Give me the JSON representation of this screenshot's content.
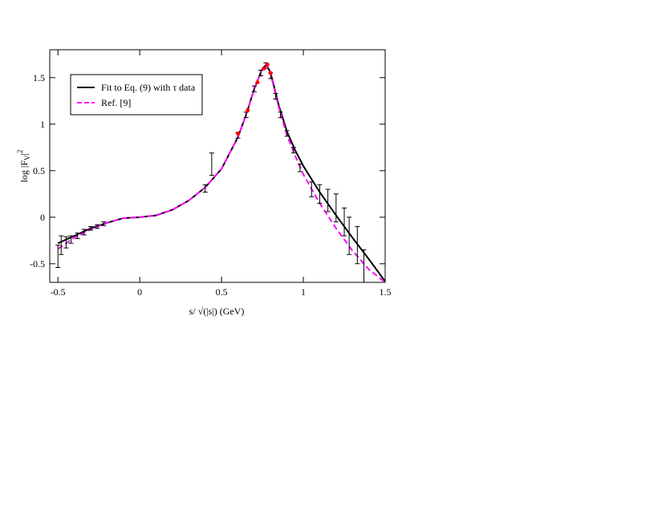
{
  "chart_data": {
    "type": "line",
    "xlabel": "s/ √(|s|)    (GeV)",
    "ylabel": {
      "text": "log |F",
      "sub": "V",
      "after": "|",
      "sup": "2"
    },
    "xlim": [
      -0.55,
      1.5
    ],
    "ylim": [
      -0.7,
      1.8
    ],
    "xticks": [
      -0.5,
      0,
      0.5,
      1,
      1.5
    ],
    "yticks": [
      -0.5,
      0,
      0.5,
      1,
      1.5
    ],
    "legend": "upper left",
    "series": [
      {
        "name": "Fit to Eq. (9) with τ data",
        "color": "#000000",
        "style": "solid",
        "x": [
          -0.5,
          -0.4,
          -0.3,
          -0.2,
          -0.1,
          0,
          0.1,
          0.2,
          0.3,
          0.4,
          0.5,
          0.6,
          0.65,
          0.7,
          0.75,
          0.775,
          0.8,
          0.85,
          0.9,
          0.95,
          1.0,
          1.1,
          1.2,
          1.3,
          1.4,
          1.5
        ],
        "values": [
          -0.28,
          -0.2,
          -0.12,
          -0.06,
          -0.01,
          0,
          0.02,
          0.08,
          0.18,
          0.32,
          0.52,
          0.86,
          1.1,
          1.38,
          1.6,
          1.64,
          1.55,
          1.2,
          0.92,
          0.72,
          0.55,
          0.27,
          0.02,
          -0.22,
          -0.45,
          -0.69
        ]
      },
      {
        "name": "Ref. [9]",
        "color": "#ff00ff",
        "style": "dashed",
        "x": [
          -0.5,
          -0.4,
          -0.3,
          -0.2,
          -0.1,
          0,
          0.1,
          0.2,
          0.3,
          0.4,
          0.5,
          0.6,
          0.65,
          0.7,
          0.75,
          0.775,
          0.8,
          0.85,
          0.9,
          0.95,
          1.0,
          1.1,
          1.2,
          1.3,
          1.4,
          1.5
        ],
        "values": [
          -0.34,
          -0.22,
          -0.13,
          -0.06,
          -0.01,
          0,
          0.02,
          0.08,
          0.18,
          0.32,
          0.52,
          0.86,
          1.1,
          1.38,
          1.6,
          1.64,
          1.54,
          1.18,
          0.88,
          0.66,
          0.46,
          0.15,
          -0.12,
          -0.36,
          -0.56,
          -0.7
        ]
      },
      {
        "color": "#000000",
        "style": "errorbar",
        "x": [
          -0.5,
          -0.48,
          -0.45,
          -0.42,
          -0.38,
          -0.34,
          -0.3,
          -0.26,
          -0.22,
          0.4,
          0.44,
          0.6,
          0.65,
          0.7,
          0.74,
          0.77,
          0.8,
          0.83,
          0.86,
          0.9,
          0.94,
          0.98,
          1.05,
          1.1,
          1.15,
          1.2,
          1.25,
          1.28,
          1.33,
          1.37
        ],
        "values": [
          -0.42,
          -0.3,
          -0.27,
          -0.24,
          -0.2,
          -0.16,
          -0.12,
          -0.1,
          -0.07,
          0.31,
          0.57,
          0.88,
          1.1,
          1.38,
          1.55,
          1.63,
          1.52,
          1.3,
          1.1,
          0.9,
          0.72,
          0.53,
          0.3,
          0.25,
          0.18,
          0.1,
          -0.05,
          -0.2,
          -0.3,
          -0.55
        ],
        "errors": [
          0.12,
          0.1,
          0.06,
          0.04,
          0.03,
          0.03,
          0.02,
          0.02,
          0.02,
          0.04,
          0.12,
          0.03,
          0.03,
          0.03,
          0.03,
          0.03,
          0.03,
          0.03,
          0.03,
          0.03,
          0.03,
          0.04,
          0.08,
          0.1,
          0.12,
          0.15,
          0.15,
          0.2,
          0.2,
          0.2
        ]
      },
      {
        "color": "#ff0000",
        "style": "points",
        "x": [
          0.6,
          0.66,
          0.72,
          0.76,
          0.78,
          0.8
        ],
        "values": [
          0.9,
          1.15,
          1.45,
          1.6,
          1.64,
          1.55
        ]
      }
    ]
  }
}
